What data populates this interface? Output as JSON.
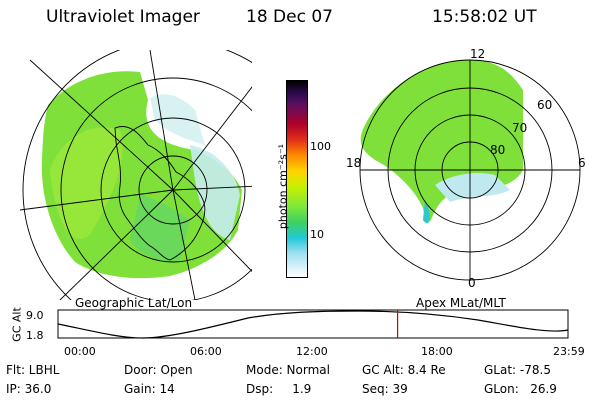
{
  "header": {
    "instrument": "Ultraviolet Imager",
    "date": "18 Dec 07",
    "time": "15:58:02 UT"
  },
  "colorbar": {
    "unit_label": "photon cm⁻²s⁻¹",
    "ticks": [
      "100",
      "10"
    ]
  },
  "left_panel": {
    "caption": "Geographic Lat/Lon"
  },
  "right_panel": {
    "caption": "Apex MLat/MLT",
    "mlt_labels": {
      "top": "12",
      "bottom": "0",
      "left": "18",
      "right": "6"
    },
    "lat_labels": [
      "60",
      "70",
      "80"
    ]
  },
  "altitude_plot": {
    "ylabel": "GC Alt",
    "ytick_top": "9.0",
    "ytick_bottom": "1.8",
    "xticks": [
      "00:00",
      "06:00",
      "12:00",
      "18:00",
      "23:59"
    ],
    "current_time_marker_hours": 15.97
  },
  "status": {
    "flt": "Flt: LBHL",
    "ip": "IP: 36.0",
    "door": "Door: Open",
    "gain": "Gain: 14",
    "mode": "Mode: Normal",
    "dsp": "Dsp:     1.9",
    "gc_alt": "GC Alt: 8.4 Re",
    "seq": "Seq: 39",
    "glat": "GLat: -78.5",
    "glon": "GLon:   26.9"
  }
}
